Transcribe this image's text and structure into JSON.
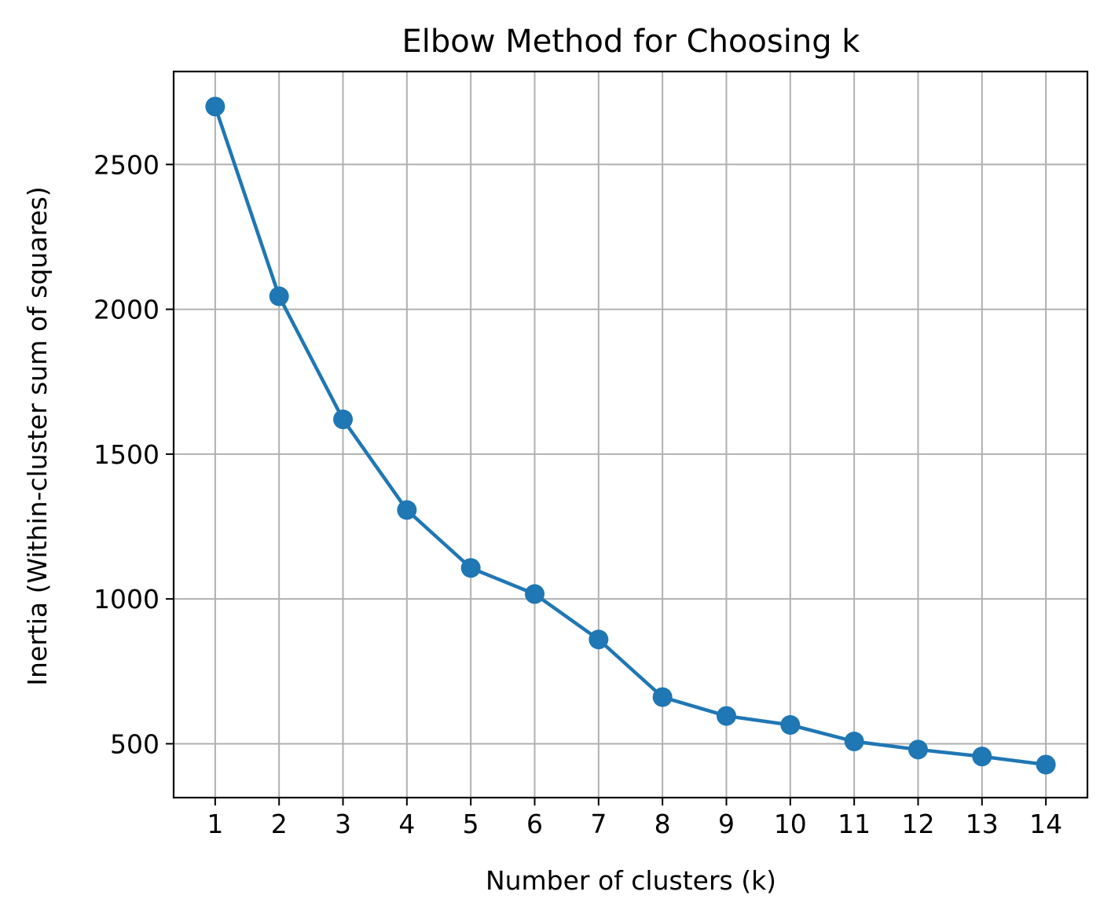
{
  "chart_data": {
    "type": "line",
    "title": "Elbow Method for Choosing k",
    "xlabel": "Number of clusters (k)",
    "ylabel": "Inertia (Within-cluster sum of squares)",
    "x": [
      1,
      2,
      3,
      4,
      5,
      6,
      7,
      8,
      9,
      10,
      11,
      12,
      13,
      14
    ],
    "series": [
      {
        "values": [
          2700,
          2045,
          1620,
          1307,
          1107,
          1017,
          860,
          661,
          596,
          565,
          508,
          480,
          456,
          428
        ],
        "color": "#1f77b4",
        "marker": "circle"
      }
    ],
    "xticks": [
      "1",
      "2",
      "3",
      "4",
      "5",
      "6",
      "7",
      "8",
      "9",
      "10",
      "11",
      "12",
      "13",
      "14"
    ],
    "yticks": [
      "500",
      "1000",
      "1500",
      "2000",
      "2500"
    ],
    "xlim": [
      0.35,
      14.65
    ],
    "ylim": [
      314,
      2821
    ],
    "grid": true
  }
}
